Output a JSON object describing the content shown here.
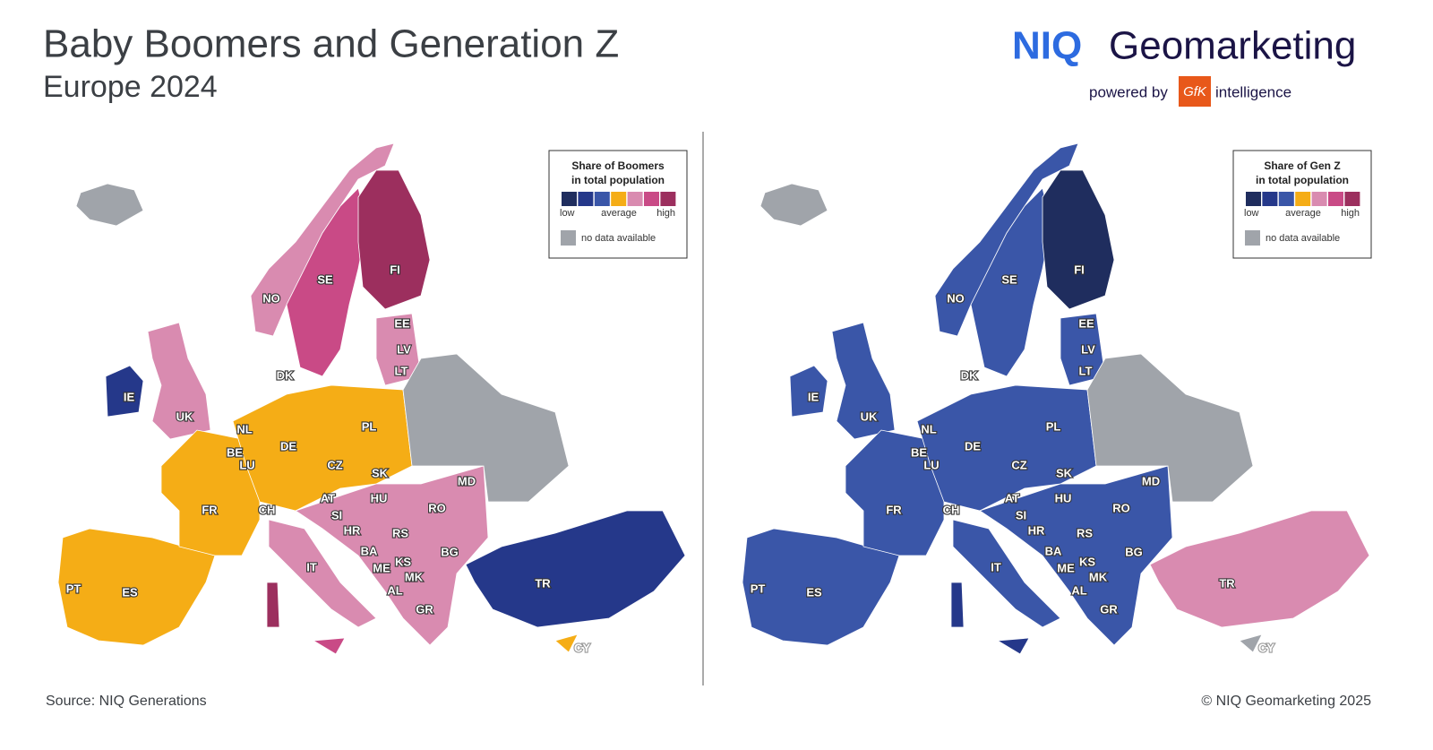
{
  "header": {
    "title": "Baby Boomers and Generation Z",
    "subtitle": "Europe 2024"
  },
  "brand": {
    "niq": "NIQ",
    "geomarketing": "Geomarketing",
    "powered_by": "powered by",
    "gfk": "GfK",
    "intelligence": "intelligence"
  },
  "palette": [
    "#1f2d5e",
    "#25388a",
    "#3a56a8",
    "#f5ad16",
    "#d98bb0",
    "#c94a86",
    "#9c2f5e"
  ],
  "no_data_color": "#a0a4aa",
  "maps": [
    {
      "legend": {
        "title": [
          "Share of Boomers",
          "in total population"
        ],
        "low": "low",
        "average": "average",
        "high": "high",
        "no_data": "no data available"
      },
      "country_labels": [
        "PT",
        "ES",
        "FR",
        "IE",
        "UK",
        "NL",
        "BE",
        "LU",
        "DE",
        "CH",
        "IT",
        "DK",
        "NO",
        "SE",
        "FI",
        "EE",
        "LV",
        "LT",
        "PL",
        "CZ",
        "SK",
        "AT",
        "SI",
        "HU",
        "HR",
        "BA",
        "RS",
        "ME",
        "KS",
        "AL",
        "MK",
        "GR",
        "RO",
        "MD",
        "BG",
        "TR",
        "CY"
      ]
    },
    {
      "legend": {
        "title": [
          "Share of Gen Z",
          "in total population"
        ],
        "low": "low",
        "average": "average",
        "high": "high",
        "no_data": "no data available"
      },
      "country_labels": [
        "PT",
        "ES",
        "FR",
        "IE",
        "UK",
        "NL",
        "BE",
        "LU",
        "DE",
        "CH",
        "IT",
        "DK",
        "NO",
        "SE",
        "FI",
        "EE",
        "LV",
        "LT",
        "PL",
        "CZ",
        "SK",
        "AT",
        "SI",
        "HU",
        "HR",
        "BA",
        "RS",
        "ME",
        "KS",
        "AL",
        "MK",
        "GR",
        "RO",
        "MD",
        "BG",
        "TR",
        "CY"
      ]
    }
  ],
  "footer": {
    "source": "Source: NIQ Generations",
    "copyright": "© NIQ Geomarketing 2025"
  }
}
